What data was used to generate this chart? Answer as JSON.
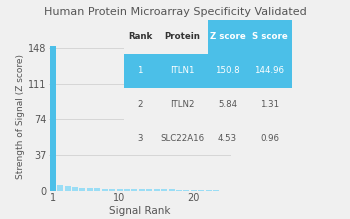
{
  "title": "Human Protein Microarray Specificity Validated",
  "xlabel": "Signal Rank",
  "ylabel": "Strength of Signal (Z score)",
  "yticks": [
    0,
    37,
    74,
    111,
    148
  ],
  "xticks": [
    1,
    10,
    20
  ],
  "xlim": [
    0.5,
    25
  ],
  "ylim": [
    0,
    155
  ],
  "bar_color": "#4bbfe8",
  "bar_color_dim": "#9addf5",
  "bg_color": "#f0f0f0",
  "z_scores": [
    150.8,
    5.84,
    4.53,
    3.5,
    3.0,
    2.7,
    2.4,
    2.1,
    1.9,
    1.8,
    1.7,
    1.6,
    1.5,
    1.4,
    1.3,
    1.2,
    1.1,
    1.05,
    1.0,
    0.95,
    0.9,
    0.8,
    0.7
  ],
  "table_data": {
    "headers": [
      "Rank",
      "Protein",
      "Z score",
      "S score"
    ],
    "rows": [
      [
        "1",
        "ITLN1",
        "150.8",
        "144.96"
      ],
      [
        "2",
        "ITLN2",
        "5.84",
        "1.31"
      ],
      [
        "3",
        "SLC22A16",
        "4.53",
        "0.96"
      ]
    ],
    "header_bg": "#f0f0f0",
    "row1_bg": "#4bbfe8",
    "row_bg": "#f0f0f0",
    "header_text": "#333333",
    "row1_text": "#ffffff",
    "row_text": "#555555",
    "zscore_header_bg": "#4bbfe8",
    "zscore_header_text": "#ffffff"
  }
}
